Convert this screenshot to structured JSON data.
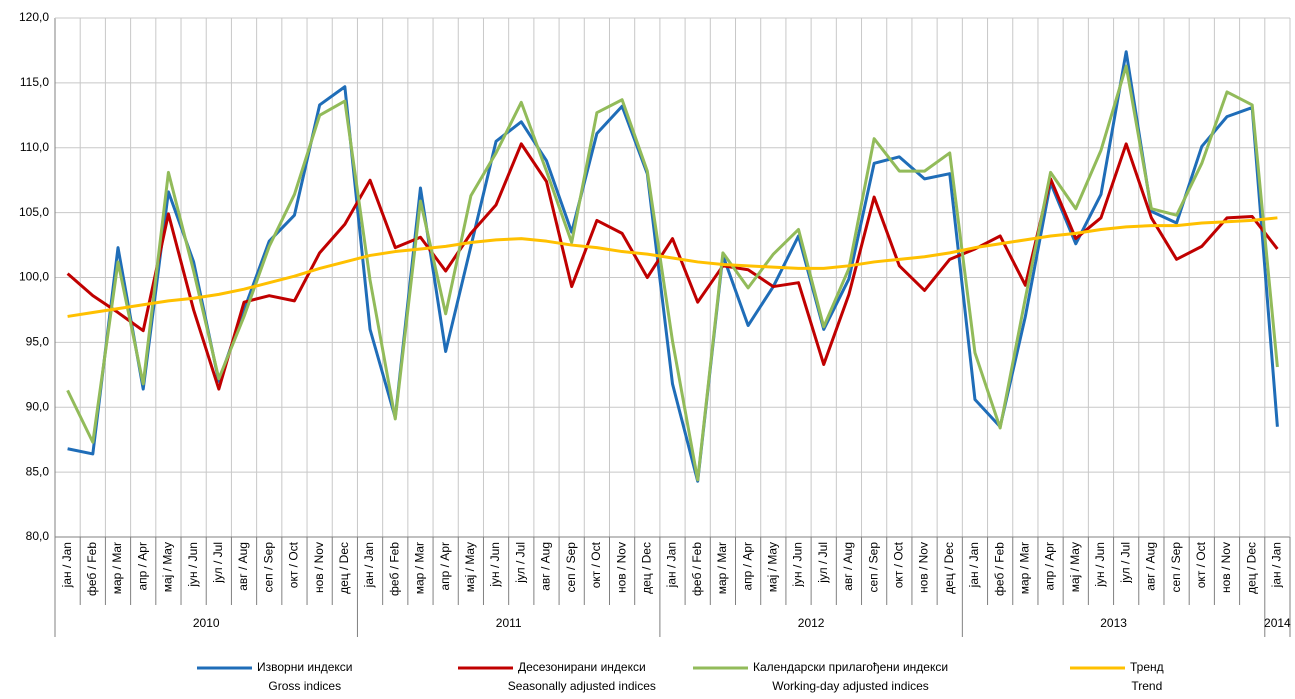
{
  "chart_data": {
    "type": "line",
    "categories": [
      "јан / Jan",
      "феб / Feb",
      "мар / Mar",
      "апр / Apr",
      "мај / May",
      "јун / Jun",
      "јул / Jul",
      "авг / Aug",
      "сеп / Sep",
      "окт / Oct",
      "нов / Nov",
      "дец / Dec",
      "јан / Jan",
      "феб / Feb",
      "мар / Mar",
      "апр / Apr",
      "мај / May",
      "јун / Jun",
      "јул / Jul",
      "авг / Aug",
      "сеп / Sep",
      "окт / Oct",
      "нов / Nov",
      "дец / Dec",
      "јан / Jan",
      "феб / Feb",
      "мар / Mar",
      "апр / Apr",
      "мај / May",
      "јун / Jun",
      "јул / Jul",
      "авг / Aug",
      "сеп / Sep",
      "окт / Oct",
      "нов / Nov",
      "дец / Dec",
      "јан / Jan",
      "феб / Feb",
      "мар / Mar",
      "апр / Apr",
      "мај / May",
      "јун / Jun",
      "јул / Jul",
      "авг / Aug",
      "сеп / Sep",
      "окт / Oct",
      "нов / Nov",
      "дец / Dec",
      "јан / Jan"
    ],
    "year_labels": [
      "2010",
      null,
      null,
      null,
      null,
      null,
      null,
      null,
      null,
      null,
      null,
      null,
      "2011",
      null,
      null,
      null,
      null,
      null,
      null,
      null,
      null,
      null,
      null,
      null,
      "2012",
      null,
      null,
      null,
      null,
      null,
      null,
      null,
      null,
      null,
      null,
      null,
      "2013",
      null,
      null,
      null,
      null,
      null,
      null,
      null,
      null,
      null,
      null,
      null,
      "2014"
    ],
    "ylim": [
      80,
      120
    ],
    "yticks": [
      {
        "value": 80,
        "label": "80,0"
      },
      {
        "value": 85,
        "label": "85,0"
      },
      {
        "value": 90,
        "label": "90,0"
      },
      {
        "value": 95,
        "label": "95,0"
      },
      {
        "value": 100,
        "label": "100,0"
      },
      {
        "value": 105,
        "label": "105,0"
      },
      {
        "value": 110,
        "label": "110,0"
      },
      {
        "value": 115,
        "label": "115,0"
      },
      {
        "value": 120,
        "label": "120,0"
      }
    ],
    "grid": true,
    "series": [
      {
        "name": "Изворни индекси",
        "name_en": "Gross indices",
        "color": "#1f6db8",
        "values": [
          86.8,
          86.4,
          102.3,
          91.4,
          106.6,
          101.2,
          92.0,
          97.5,
          102.8,
          104.8,
          113.3,
          114.7,
          96.0,
          89.2,
          106.9,
          94.3,
          102.4,
          110.5,
          112.0,
          109.0,
          103.5,
          111.1,
          113.2,
          108.0,
          91.8,
          84.3,
          101.7,
          96.3,
          99.3,
          103.2,
          96.0,
          99.9,
          108.8,
          109.3,
          107.6,
          108.0,
          90.6,
          88.5,
          97.0,
          107.3,
          102.6,
          106.4,
          117.4,
          105.1,
          104.2,
          110.1,
          112.4,
          113.1,
          88.5
        ]
      },
      {
        "name": "Десезонирани индекси",
        "name_en": "Seasonally adjusted indices",
        "color": "#c00000",
        "values": [
          100.3,
          98.6,
          97.3,
          95.9,
          104.9,
          97.5,
          91.4,
          98.1,
          98.6,
          98.2,
          101.9,
          104.1,
          107.5,
          102.3,
          103.1,
          100.5,
          103.4,
          105.6,
          110.3,
          107.4,
          99.3,
          104.4,
          103.4,
          100.0,
          103.0,
          98.1,
          100.9,
          100.6,
          99.3,
          99.6,
          93.3,
          98.7,
          106.2,
          100.9,
          99.0,
          101.4,
          102.2,
          103.2,
          99.4,
          107.6,
          103.0,
          104.6,
          110.3,
          104.6,
          101.4,
          102.4,
          104.6,
          104.7,
          102.2
        ]
      },
      {
        "name": "Календарски прилагођени индекси",
        "name_en": "Working-day adjusted indices",
        "color": "#92bb5a",
        "values": [
          91.3,
          87.3,
          101.2,
          91.8,
          108.1,
          100.5,
          92.2,
          97.0,
          102.4,
          106.4,
          112.5,
          113.6,
          99.8,
          89.1,
          105.9,
          97.2,
          106.3,
          109.6,
          113.5,
          108.2,
          102.7,
          112.7,
          113.7,
          108.2,
          95.1,
          84.4,
          101.9,
          99.2,
          101.8,
          103.7,
          96.2,
          100.7,
          110.7,
          108.2,
          108.2,
          109.6,
          94.2,
          88.4,
          98.4,
          108.1,
          105.3,
          109.8,
          116.3,
          105.3,
          104.8,
          108.8,
          114.3,
          113.3,
          93.1
        ]
      },
      {
        "name": "Тренд",
        "name_en": "Trend",
        "color": "#ffc000",
        "values": [
          97.0,
          97.3,
          97.6,
          97.9,
          98.2,
          98.4,
          98.7,
          99.1,
          99.6,
          100.1,
          100.7,
          101.2,
          101.7,
          102.0,
          102.2,
          102.4,
          102.7,
          102.9,
          103.0,
          102.8,
          102.5,
          102.3,
          102.0,
          101.8,
          101.5,
          101.2,
          101.0,
          100.9,
          100.8,
          100.7,
          100.7,
          100.9,
          101.2,
          101.4,
          101.6,
          101.9,
          102.3,
          102.6,
          102.9,
          103.2,
          103.4,
          103.7,
          103.9,
          104.0,
          104.0,
          104.2,
          104.3,
          104.4,
          104.6
        ]
      }
    ]
  }
}
